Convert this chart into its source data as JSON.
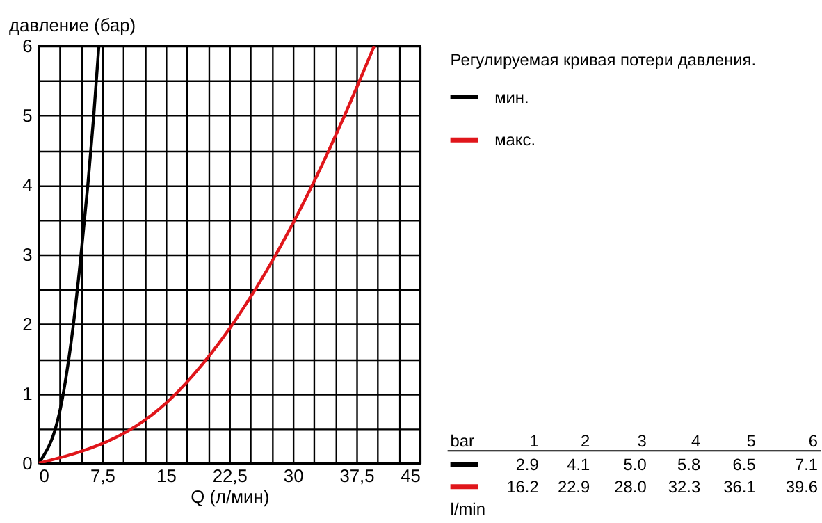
{
  "chart_data": {
    "type": "line",
    "legend_title": "Регулируемая кривая потери давления.",
    "xlabel": "Q (л/мин)",
    "ylabel": "давление (бар)",
    "series": [
      {
        "name": "мин.",
        "color": "#000000",
        "x": [
          0,
          2.9,
          4.1,
          5.0,
          5.8,
          6.5,
          7.1
        ],
        "values": [
          0,
          1,
          2,
          3,
          4,
          5,
          6
        ]
      },
      {
        "name": "макс.",
        "color": "#e0161b",
        "x": [
          0,
          16.2,
          22.9,
          28.0,
          32.3,
          36.1,
          39.6
        ],
        "values": [
          0,
          1,
          2,
          3,
          4,
          5,
          6
        ]
      }
    ],
    "annotations": [
      "bar",
      "1",
      "2",
      "3",
      "4",
      "5",
      "6",
      "2.9",
      "4.1",
      "5.0",
      "5.8",
      "6.5",
      "7.1",
      "16.2",
      "22.9",
      "28.0",
      "32.3",
      "36.1",
      "39.6",
      "l/min"
    ],
    "xlim": [
      0,
      45
    ],
    "ylim": [
      0,
      6
    ],
    "xticks": [
      0,
      {
        "value": 2.5,
        "label": null
      },
      {
        "value": 5,
        "label": null
      },
      {
        "value": 7.5,
        "label": "7,5"
      },
      {
        "value": 10,
        "label": null
      },
      {
        "value": 12.5,
        "label": null
      },
      15,
      {
        "value": 17.5,
        "label": null
      },
      {
        "value": 20,
        "label": null
      },
      {
        "value": 22.5,
        "label": "22,5"
      },
      {
        "value": 25,
        "label": null
      },
      {
        "value": 27.5,
        "label": null
      },
      30,
      {
        "value": 32.5,
        "label": null
      },
      {
        "value": 35,
        "label": null
      },
      {
        "value": 37.5,
        "label": "37,5"
      },
      {
        "value": 40,
        "label": null
      },
      {
        "value": 42.5,
        "label": null
      },
      45
    ],
    "yticks": [
      0,
      {
        "value": 0.5,
        "label": null
      },
      1,
      {
        "value": 1.5,
        "label": null
      },
      2,
      {
        "value": 2.5,
        "label": null
      },
      3,
      {
        "value": 3.5,
        "label": null
      },
      4,
      {
        "value": 4.5,
        "label": null
      },
      5,
      {
        "value": 5.5,
        "label": null
      },
      6
    ],
    "grid": true,
    "legend": "right",
    "marker": "none",
    "line_style": "solid"
  }
}
